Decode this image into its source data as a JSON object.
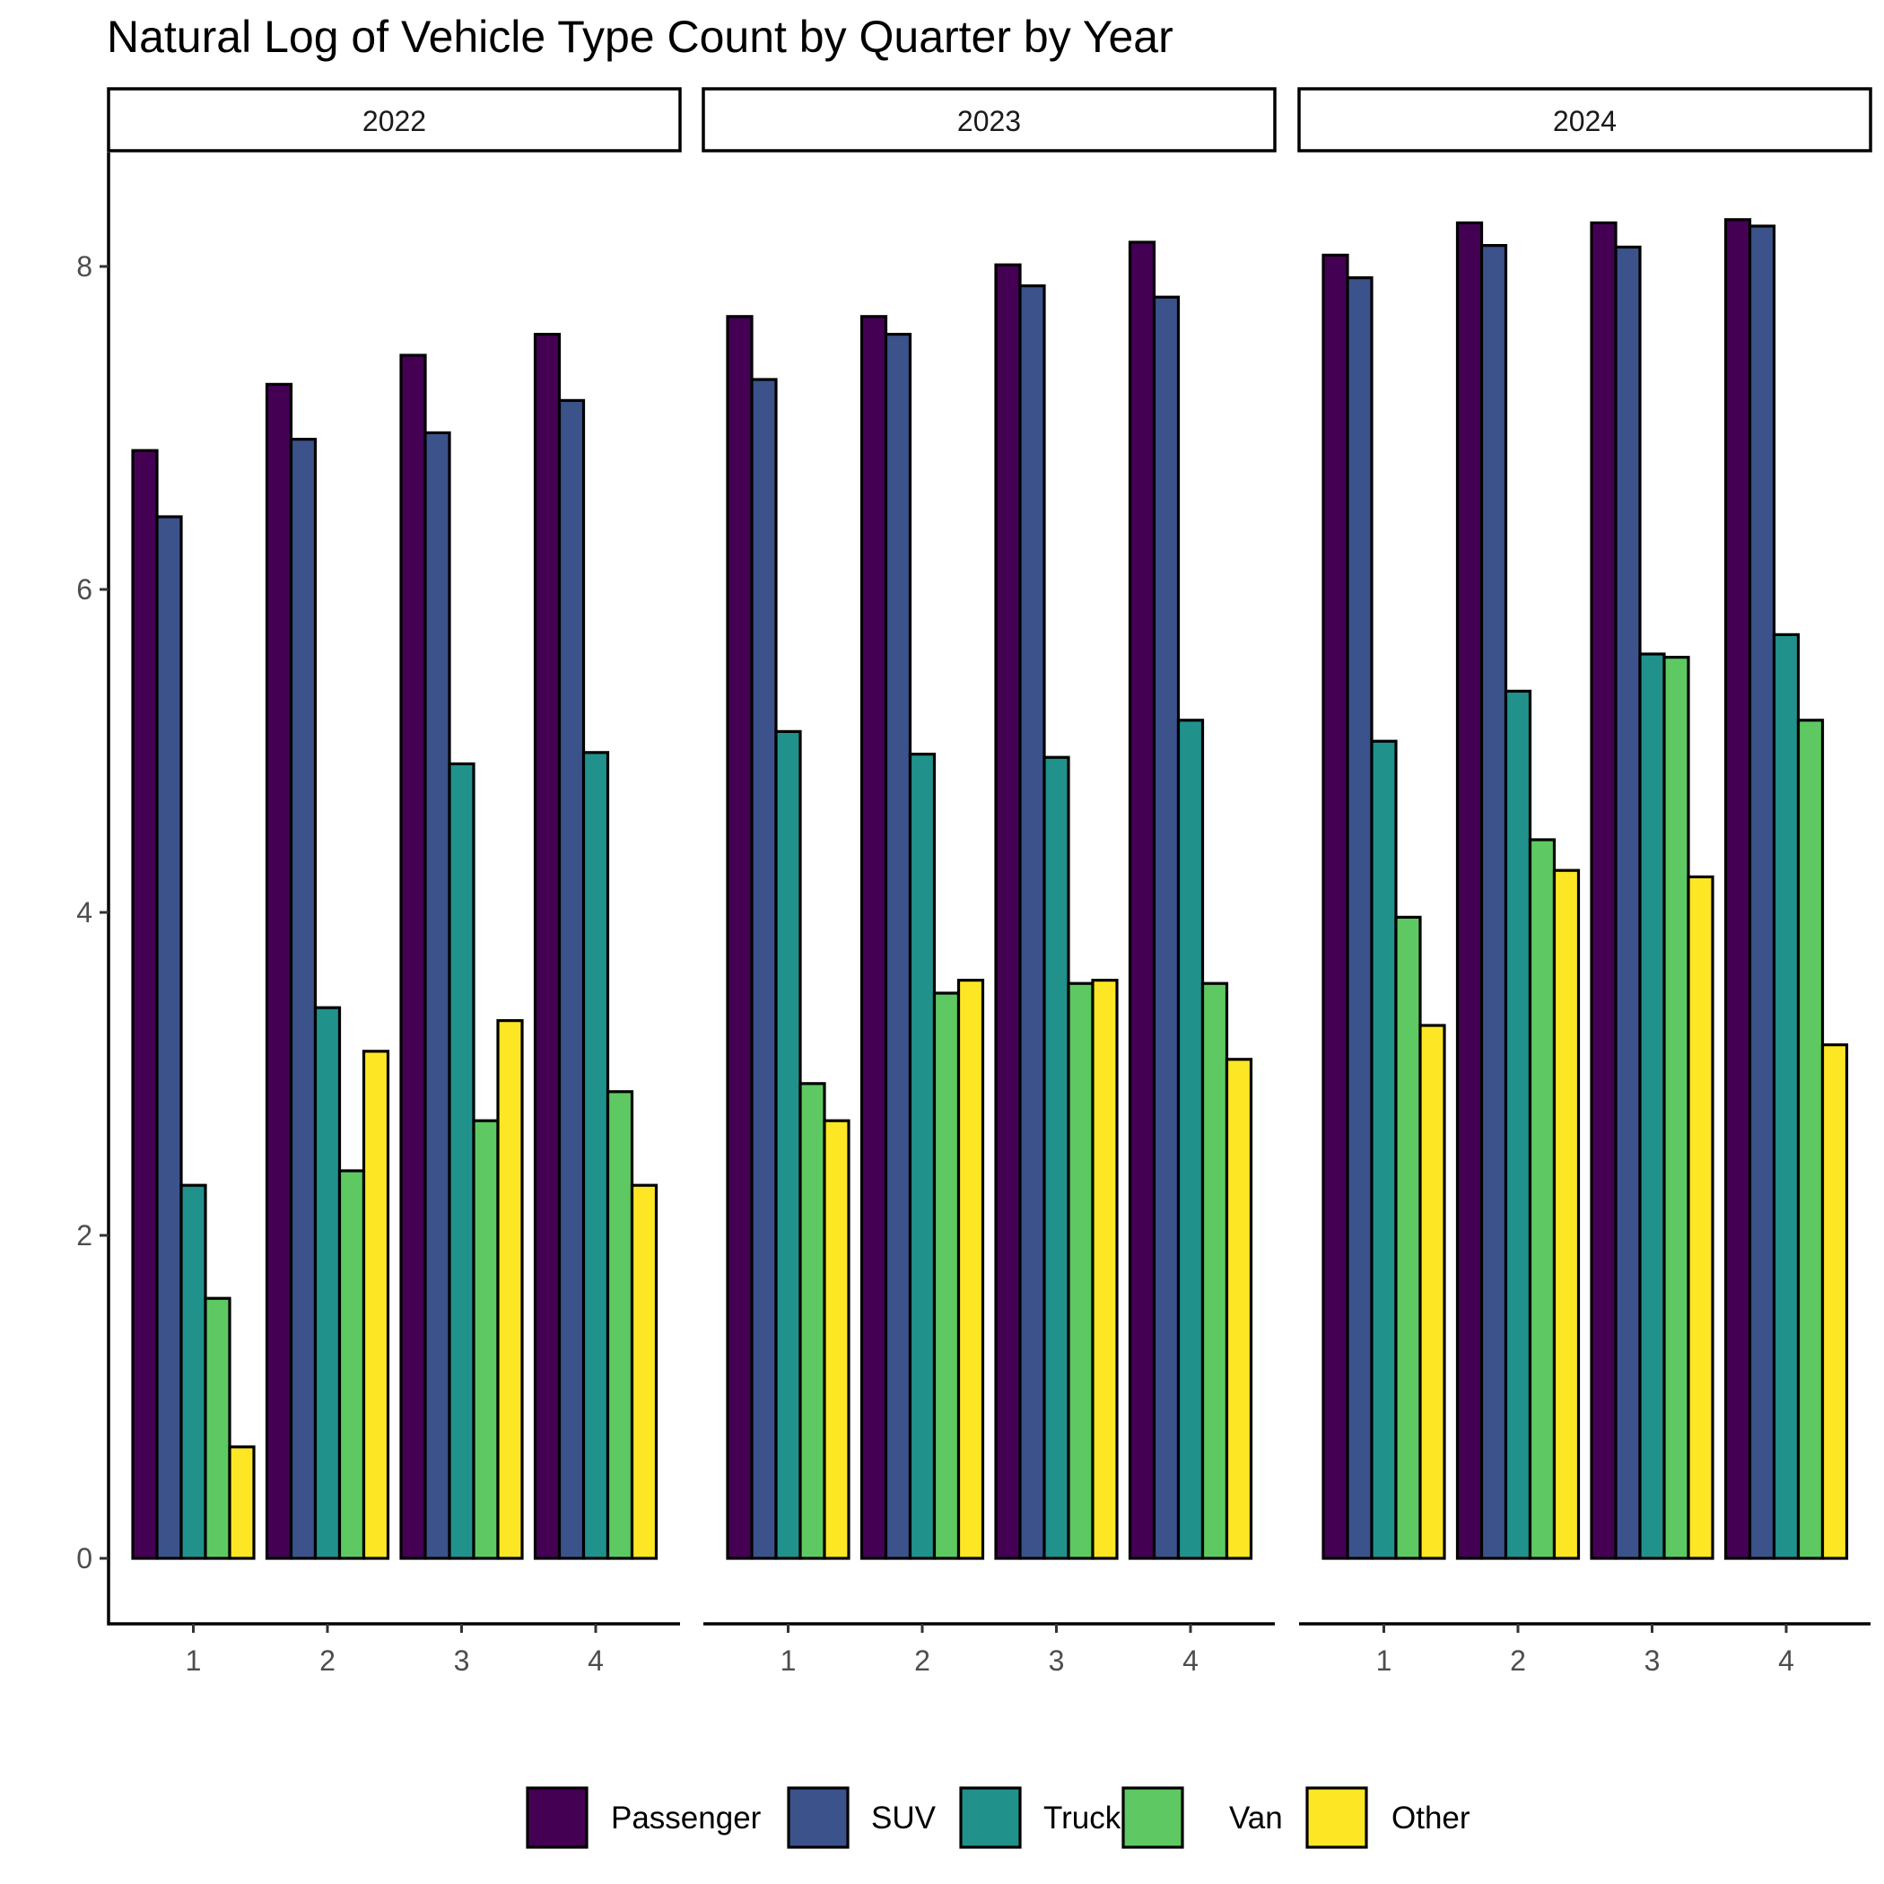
{
  "colors": {
    "Passenger": "#440154",
    "SUV": "#3b528b",
    "Truck": "#21918c",
    "Van": "#5ec962",
    "Other": "#fde725",
    "outline": "#000000"
  },
  "chart_data": {
    "type": "bar",
    "title": "Natural Log of Vehicle Type Count by Quarter by Year",
    "xlabel": "",
    "ylabel": "",
    "ylim": [
      -0.4,
      8.7
    ],
    "y_ticks": [
      0,
      2,
      4,
      6,
      8
    ],
    "y_tick_labels": [
      "0",
      "2",
      "4",
      "6",
      "8"
    ],
    "categories": [
      "1",
      "2",
      "3",
      "4"
    ],
    "legend_position": "bottom",
    "legend": [
      "Passenger",
      "SUV",
      "Truck",
      "Van",
      "Other"
    ],
    "grid": false,
    "facets": [
      {
        "label": "2022",
        "series": [
          {
            "name": "Passenger",
            "values": [
              6.86,
              7.27,
              7.45,
              7.58
            ]
          },
          {
            "name": "SUV",
            "values": [
              6.45,
              6.93,
              6.97,
              7.17
            ]
          },
          {
            "name": "Truck",
            "values": [
              2.31,
              3.41,
              4.92,
              4.99
            ]
          },
          {
            "name": "Van",
            "values": [
              1.61,
              2.4,
              2.71,
              2.89
            ]
          },
          {
            "name": "Other",
            "values": [
              0.69,
              3.14,
              3.33,
              2.31
            ]
          }
        ]
      },
      {
        "label": "2023",
        "series": [
          {
            "name": "Passenger",
            "values": [
              7.69,
              7.69,
              8.01,
              8.15
            ]
          },
          {
            "name": "SUV",
            "values": [
              7.3,
              7.58,
              7.88,
              7.81
            ]
          },
          {
            "name": "Truck",
            "values": [
              5.12,
              4.98,
              4.96,
              5.19
            ]
          },
          {
            "name": "Van",
            "values": [
              2.94,
              3.5,
              3.56,
              3.56
            ]
          },
          {
            "name": "Other",
            "values": [
              2.71,
              3.58,
              3.58,
              3.09
            ]
          }
        ]
      },
      {
        "label": "2024",
        "series": [
          {
            "name": "Passenger",
            "values": [
              8.07,
              8.27,
              8.27,
              8.29
            ]
          },
          {
            "name": "SUV",
            "values": [
              7.93,
              8.13,
              8.12,
              8.25
            ]
          },
          {
            "name": "Truck",
            "values": [
              5.06,
              5.37,
              5.6,
              5.72
            ]
          },
          {
            "name": "Van",
            "values": [
              3.97,
              4.45,
              5.58,
              5.19
            ]
          },
          {
            "name": "Other",
            "values": [
              3.3,
              4.26,
              4.22,
              3.18
            ]
          }
        ]
      }
    ]
  }
}
